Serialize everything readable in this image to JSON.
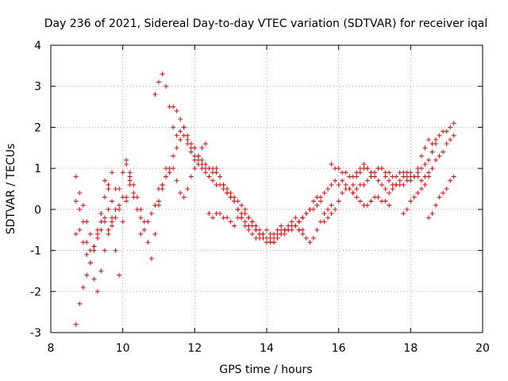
{
  "chart_data": {
    "type": "scatter",
    "title": "Day 236 of 2021, Sidereal Day-to-day VTEC variation (SDTVAR) for receiver iqal",
    "xlabel": "GPS time / hours",
    "ylabel": "SDTVAR / TECUs",
    "xlim": [
      8,
      20
    ],
    "ylim": [
      -3,
      4
    ],
    "xticks": [
      "8",
      "10",
      "12",
      "14",
      "16",
      "18",
      "20"
    ],
    "yticks": [
      "-3",
      "-2",
      "-1",
      "0",
      "1",
      "2",
      "3",
      "4"
    ],
    "grid": true,
    "marker": "+",
    "color": "#ff0000",
    "series": [
      {
        "name": "s1",
        "x": [
          8.7,
          8.8,
          8.9,
          9.0,
          9.1,
          9.2,
          9.3,
          9.4,
          9.5,
          9.6,
          9.7
        ],
        "y": [
          -2.8,
          -2.3,
          -1.9,
          -1.6,
          -1.3,
          -1.0,
          -0.7,
          -0.5,
          -0.3,
          -0.5,
          -0.3
        ]
      },
      {
        "name": "s2",
        "x": [
          8.7,
          8.8,
          8.9,
          9.0,
          9.1,
          9.2,
          9.3,
          9.4,
          9.5,
          9.6,
          9.7,
          9.8,
          9.9,
          10.0,
          10.1,
          10.2,
          10.3
        ],
        "y": [
          -0.6,
          -0.5,
          -0.8,
          -1.1,
          -1.0,
          -0.9,
          -0.6,
          -0.3,
          -0.2,
          0.0,
          -0.4,
          -0.2,
          0.1,
          0.3,
          0.2,
          0.6,
          0.4
        ]
      },
      {
        "name": "s3",
        "x": [
          8.7,
          8.8,
          8.9,
          9.0,
          9.1,
          9.2,
          9.3,
          9.4,
          9.5,
          9.6,
          9.7,
          9.8,
          9.9,
          10.0,
          10.1,
          10.2,
          10.3,
          10.4,
          10.5
        ],
        "y": [
          0.2,
          0.0,
          -0.3,
          -0.8,
          -1.3,
          -1.7,
          -2.0,
          -1.5,
          -1.0,
          -0.6,
          -0.2,
          0.0,
          0.5,
          0.9,
          1.1,
          0.7,
          0.3,
          0.0,
          -0.2
        ]
      },
      {
        "name": "s4",
        "x": [
          8.7,
          8.8,
          8.9,
          9.0,
          9.1,
          9.2,
          9.3,
          9.4,
          9.5,
          9.6,
          9.7,
          9.8,
          9.9,
          10.0,
          10.1,
          10.2
        ],
        "y": [
          0.8,
          0.4,
          0.1,
          -0.3,
          -0.6,
          -0.9,
          -0.5,
          -0.1,
          0.3,
          0.6,
          0.9,
          0.5,
          0.0,
          -0.3,
          0.3,
          0.8
        ]
      },
      {
        "name": "s5",
        "x": [
          9.5,
          9.6,
          9.7,
          9.8,
          9.9
        ],
        "y": [
          0.7,
          0.5,
          0.2,
          -1.0,
          -1.6
        ]
      },
      {
        "name": "s6",
        "x": [
          10.1,
          10.2,
          10.3,
          10.4,
          10.5,
          10.6,
          10.7,
          10.8,
          10.9,
          11.0,
          11.1,
          11.2
        ],
        "y": [
          1.2,
          0.9,
          0.6,
          0.3,
          0.0,
          -0.3,
          -0.8,
          -1.2,
          -0.6,
          0.1,
          0.6,
          1.0
        ]
      },
      {
        "name": "s7",
        "x": [
          10.5,
          10.6,
          10.7,
          10.8,
          10.9,
          11.0,
          11.1,
          11.2,
          11.3,
          11.4,
          11.5,
          11.6,
          11.7,
          11.8,
          11.9,
          12.0,
          12.1,
          12.2,
          12.3,
          12.4,
          12.5,
          12.6,
          12.7,
          12.8,
          12.9,
          13.0,
          13.1,
          13.2,
          13.3,
          13.4,
          13.5,
          13.6,
          13.7,
          13.8,
          13.9,
          14.0,
          14.1,
          14.2,
          14.3,
          14.4,
          14.5
        ],
        "y": [
          -0.6,
          -0.5,
          -0.3,
          -0.1,
          0.1,
          0.2,
          0.5,
          0.8,
          1.0,
          1.3,
          1.5,
          1.7,
          1.8,
          1.6,
          1.4,
          1.2,
          1.1,
          1.0,
          0.9,
          0.8,
          0.9,
          1.0,
          0.8,
          0.6,
          0.4,
          0.3,
          0.2,
          0.0,
          -0.2,
          -0.4,
          -0.5,
          -0.6,
          -0.7,
          -0.7,
          -0.6,
          -0.5,
          -0.6,
          -0.7,
          -0.6,
          -0.5,
          -0.5
        ]
      },
      {
        "name": "s8",
        "x": [
          10.9,
          11.0,
          11.1,
          11.2,
          11.3,
          11.4,
          11.5,
          11.6,
          11.7,
          11.8,
          11.9,
          12.0,
          12.1,
          12.2,
          12.3,
          12.4,
          12.5,
          12.6,
          12.7,
          12.8,
          12.9,
          13.0,
          13.1,
          13.2,
          13.3,
          13.4,
          13.5,
          13.6,
          13.7,
          13.8,
          13.9,
          14.0,
          14.1,
          14.2,
          14.3,
          14.4,
          14.5,
          14.6,
          14.7,
          14.8,
          14.9,
          15.0,
          15.1,
          15.2,
          15.3,
          15.4,
          15.5
        ],
        "y": [
          2.8,
          3.1,
          3.3,
          3.0,
          2.5,
          2.0,
          1.8,
          1.9,
          2.0,
          1.7,
          1.5,
          1.3,
          1.2,
          1.1,
          1.1,
          1.0,
          1.0,
          0.9,
          0.8,
          0.6,
          0.5,
          0.4,
          0.3,
          0.2,
          0.1,
          0.0,
          -0.2,
          -0.3,
          -0.4,
          -0.5,
          -0.6,
          -0.7,
          -0.7,
          -0.6,
          -0.5,
          -0.4,
          -0.5,
          -0.4,
          -0.3,
          -0.2,
          -0.3,
          -0.2,
          -0.1,
          0.0,
          0.0,
          0.1,
          0.2
        ]
      },
      {
        "name": "s9",
        "x": [
          11.4,
          11.5,
          11.6,
          11.7,
          11.8,
          11.9,
          12.0,
          12.1,
          12.2,
          12.3,
          12.4,
          12.5,
          12.6,
          12.7,
          12.8,
          12.9,
          13.0,
          13.1,
          13.2,
          13.3,
          13.4,
          13.5,
          13.6,
          13.7,
          13.8,
          13.9,
          14.0,
          14.1,
          14.2,
          14.3,
          14.4,
          14.5,
          14.6,
          14.7,
          14.8,
          14.9,
          15.0,
          15.1,
          15.2,
          15.3,
          15.4,
          15.5,
          15.6,
          15.7,
          15.8
        ],
        "y": [
          2.5,
          2.4,
          2.2,
          2.0,
          1.8,
          1.6,
          1.5,
          1.3,
          1.2,
          1.0,
          0.8,
          0.7,
          0.6,
          0.6,
          0.5,
          0.4,
          0.3,
          0.2,
          0.0,
          -0.2,
          -0.3,
          -0.4,
          -0.4,
          -0.5,
          -0.6,
          -0.7,
          -0.8,
          -0.8,
          -0.8,
          -0.7,
          -0.6,
          -0.5,
          -0.5,
          -0.4,
          -0.4,
          -0.5,
          -0.6,
          -0.7,
          -0.8,
          -0.7,
          -0.5,
          -0.3,
          -0.1,
          0.0,
          0.1
        ]
      },
      {
        "name": "s10",
        "x": [
          11.0,
          11.1,
          11.2,
          11.3,
          11.4,
          11.5,
          11.6,
          11.7,
          11.8,
          11.9,
          12.0,
          12.1,
          12.2,
          12.3
        ],
        "y": [
          0.5,
          0.6,
          0.8,
          0.9,
          1.0,
          0.7,
          0.4,
          0.3,
          0.5,
          0.8,
          1.0,
          1.3,
          1.5,
          1.6
        ]
      },
      {
        "name": "s11",
        "x": [
          12.4,
          12.5,
          12.6,
          12.7,
          12.8,
          12.9,
          13.0,
          13.1,
          13.2,
          13.3,
          13.4,
          13.5,
          13.6,
          13.7,
          13.8,
          13.9,
          14.0,
          14.1,
          14.2,
          14.3,
          14.4,
          14.5,
          14.6,
          14.7,
          14.8,
          14.9,
          15.0
        ],
        "y": [
          -0.1,
          -0.2,
          -0.1,
          -0.1,
          -0.2,
          -0.2,
          -0.3,
          -0.4,
          -0.2,
          -0.1,
          -0.1,
          -0.2,
          -0.3,
          -0.5,
          -0.6,
          -0.7,
          -0.8,
          -0.8,
          -0.8,
          -0.7,
          -0.6,
          -0.6,
          -0.5,
          -0.5,
          -0.4,
          -0.5,
          -0.5
        ]
      },
      {
        "name": "s12",
        "x": [
          14.8,
          14.9,
          15.0,
          15.1,
          15.2,
          15.3,
          15.4,
          15.5,
          15.6,
          15.7,
          15.8,
          15.9,
          16.0,
          16.1,
          16.2,
          16.3,
          16.4,
          16.5,
          16.6,
          16.7,
          16.8,
          16.9,
          17.0,
          17.1,
          17.2,
          17.3,
          17.4
        ],
        "y": [
          -0.4,
          -0.3,
          -0.2,
          -0.1,
          0.0,
          0.2,
          0.3,
          0.3,
          0.4,
          0.5,
          0.6,
          0.7,
          0.6,
          0.7,
          0.6,
          0.5,
          0.4,
          0.3,
          0.2,
          0.1,
          0.1,
          0.2,
          0.3,
          0.3,
          0.2,
          0.2,
          0.1
        ]
      },
      {
        "name": "s13",
        "x": [
          15.6,
          15.7,
          15.8,
          15.9,
          16.0,
          16.1,
          16.2,
          16.3,
          16.4,
          16.5,
          16.6,
          16.7,
          16.8,
          16.9,
          17.0,
          17.1,
          17.2,
          17.3,
          17.4,
          17.5,
          17.6,
          17.7,
          17.8,
          17.9,
          18.0,
          18.1,
          18.2,
          18.3,
          18.4,
          18.5,
          18.6,
          18.7
        ],
        "y": [
          -0.3,
          -0.2,
          -0.1,
          0.0,
          0.2,
          0.4,
          0.5,
          0.5,
          0.6,
          0.8,
          0.9,
          1.0,
          1.0,
          0.9,
          0.9,
          1.0,
          1.0,
          0.8,
          0.7,
          0.6,
          0.6,
          0.7,
          0.8,
          0.9,
          0.9,
          0.8,
          0.9,
          1.0,
          1.1,
          1.2,
          1.4,
          1.6
        ]
      },
      {
        "name": "s14",
        "x": [
          15.8,
          15.9,
          16.0,
          16.1,
          16.2,
          16.3,
          16.4,
          16.5,
          16.6,
          16.7,
          16.8,
          16.9,
          17.0,
          17.1,
          17.2,
          17.3,
          17.4,
          17.5,
          17.6,
          17.7,
          17.8,
          17.9,
          18.0,
          18.1,
          18.2,
          18.3,
          18.4,
          18.5,
          18.6,
          18.7,
          18.8,
          18.9,
          19.0,
          19.1,
          19.2
        ],
        "y": [
          1.1,
          1.0,
          1.0,
          0.9,
          0.9,
          0.8,
          0.8,
          0.9,
          1.0,
          1.1,
          1.0,
          0.9,
          0.9,
          1.0,
          1.0,
          0.9,
          0.9,
          0.8,
          0.8,
          0.9,
          0.9,
          0.8,
          0.7,
          0.8,
          1.0,
          1.3,
          1.5,
          1.7,
          1.6,
          1.7,
          1.8,
          1.9,
          1.9,
          2.0,
          2.1
        ]
      },
      {
        "name": "s15",
        "x": [
          16.4,
          16.5,
          16.6,
          16.7,
          16.8,
          16.9,
          17.0,
          17.1,
          17.2,
          17.3,
          17.4,
          17.5,
          17.6,
          17.7,
          17.8,
          17.9,
          18.0,
          18.1,
          18.2,
          18.3,
          18.4,
          18.5,
          18.6,
          18.7,
          18.8,
          18.9,
          19.0,
          19.1,
          19.2
        ],
        "y": [
          0.4,
          0.5,
          0.6,
          0.6,
          0.7,
          0.8,
          0.8,
          0.7,
          0.6,
          0.5,
          0.4,
          0.5,
          0.6,
          0.6,
          0.6,
          0.7,
          0.8,
          0.8,
          0.8,
          0.7,
          0.8,
          0.9,
          1.0,
          1.2,
          1.3,
          1.4,
          1.6,
          1.7,
          1.8
        ]
      },
      {
        "name": "s16",
        "x": [
          17.8,
          17.9,
          18.0,
          18.1,
          18.2,
          18.3,
          18.4,
          18.5
        ],
        "y": [
          -0.1,
          0.0,
          0.2,
          0.3,
          0.4,
          0.5,
          0.6,
          0.8
        ]
      },
      {
        "name": "s17",
        "x": [
          18.5,
          18.6,
          18.7,
          18.8,
          18.9,
          19.0,
          19.1,
          19.2
        ],
        "y": [
          -0.2,
          -0.1,
          0.1,
          0.3,
          0.4,
          0.5,
          0.7,
          0.8
        ]
      }
    ]
  }
}
